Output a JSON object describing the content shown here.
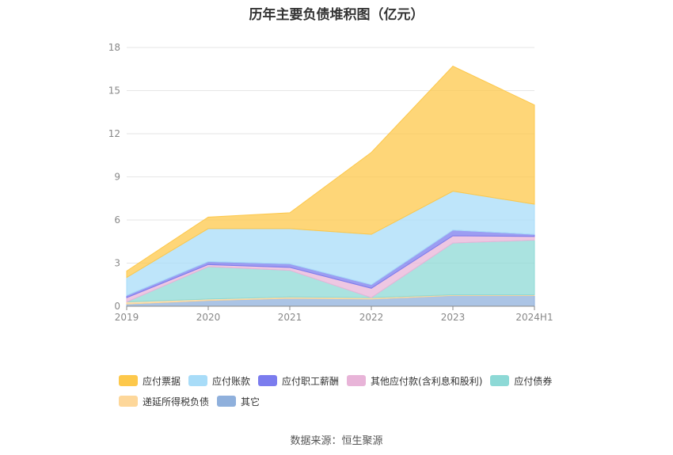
{
  "chart_data": {
    "type": "area",
    "stacked": true,
    "title": "历年主要负债堆积图（亿元）",
    "xlabel": "",
    "ylabel": "",
    "categories": [
      "2019",
      "2020",
      "2021",
      "2022",
      "2023",
      "2024H1"
    ],
    "ylim": [
      0,
      18
    ],
    "yticks": [
      0,
      3,
      6,
      9,
      12,
      15,
      18
    ],
    "grid": true,
    "legend_position": "bottom",
    "series": [
      {
        "name": "其它",
        "color": "#8fb0dc",
        "values": [
          0.15,
          0.4,
          0.55,
          0.5,
          0.75,
          0.75
        ]
      },
      {
        "name": "递延所得税负债",
        "color": "#fdd79a",
        "values": [
          0.15,
          0.1,
          0.1,
          0.1,
          0.05,
          0.05
        ]
      },
      {
        "name": "应付债券",
        "color": "#8dd9d6",
        "values": [
          0.0,
          2.25,
          1.85,
          0.0,
          3.6,
          3.8
        ]
      },
      {
        "name": "其他应付款(含利息和股利)",
        "color": "#e8b4d8",
        "values": [
          0.3,
          0.15,
          0.2,
          0.65,
          0.5,
          0.25
        ]
      },
      {
        "name": "应付职工薪酬",
        "color": "#7b7cee",
        "values": [
          0.15,
          0.2,
          0.25,
          0.25,
          0.4,
          0.15
        ]
      },
      {
        "name": "应付账款",
        "color": "#a8dcf8",
        "values": [
          1.25,
          2.3,
          2.45,
          3.5,
          2.7,
          2.1
        ]
      },
      {
        "name": "应付票据",
        "color": "#fdc84b",
        "values": [
          0.45,
          0.8,
          1.1,
          5.7,
          8.7,
          6.9
        ]
      }
    ],
    "legend_order": [
      "应付票据",
      "应付账款",
      "应付职工薪酬",
      "其他应付款(含利息和股利)",
      "应付债券",
      "递延所得税负债",
      "其它"
    ]
  },
  "footer": {
    "source": "数据来源：恒生聚源"
  }
}
